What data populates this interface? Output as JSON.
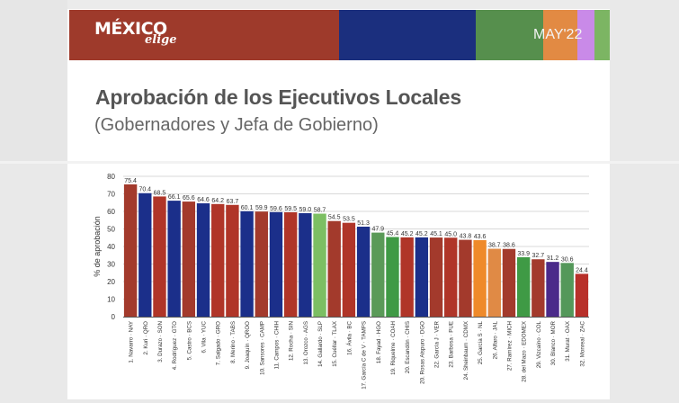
{
  "header": {
    "logo_main": "MÉXICO",
    "logo_sub": "elige",
    "date": "MAY'22",
    "stripe_colors": [
      "#9e3a2b",
      "#1b2f7e",
      "#568f4d",
      "#e28a43",
      "#c98ae8",
      "#7cb563"
    ]
  },
  "title": "Aprobación de los Ejecutivos Locales",
  "subtitle": "(Gobernadores y Jefa de Gobierno)",
  "chart_data": {
    "type": "bar",
    "ylabel": "% de aprobación",
    "xlabel": "",
    "ylim": [
      0,
      80
    ],
    "yticks": [
      0,
      10,
      20,
      30,
      40,
      50,
      60,
      70,
      80
    ],
    "grid": true,
    "categories": [
      "1. Navarro · NAY",
      "2. Kuri · QRO",
      "3. Durazo · SON",
      "4. Rodríguez · GTO",
      "5. Castro · BCS",
      "6. Vila · YUC",
      "7. Salgado · GRO",
      "8. Merino · TABS",
      "9. Joaquín · QROO",
      "10. Sansores · CAMP",
      "11. Campos · CHIH",
      "12. Rocha · SIN",
      "13. Orozco · AGS",
      "14. Gallardo · SLP",
      "15. Cuéllar · TLAX",
      "16. Ávila · BC",
      "17. García C de V · TAMPS",
      "18. Fayad · HGO",
      "19. Riquelme · COAH",
      "20. Escandón · CHIS",
      "20. Rosas Aispuro · DGO",
      "22. García J · VER",
      "23. Barbosa · PUE",
      "24. Sheinbaum · CDMX",
      "25. García S · NL",
      "26. Alfaro · JAL",
      "27. Ramírez · MICH",
      "28. del Mazo · EDOMEX",
      "29. Vizcaíno · COL",
      "30. Blanco · MOR",
      "31. Murat · OAX",
      "32. Monreal · ZAC"
    ],
    "values": [
      75.4,
      70.4,
      68.5,
      66.1,
      65.6,
      64.6,
      64.2,
      63.7,
      60.1,
      59.9,
      59.6,
      59.5,
      59.0,
      58.7,
      54.5,
      53.5,
      51.3,
      47.9,
      45.4,
      45.2,
      45.2,
      45.1,
      45.0,
      43.8,
      43.6,
      38.7,
      38.6,
      33.9,
      32.7,
      31.2,
      30.6,
      24.4
    ],
    "value_labels": [
      "75.4",
      "70.4",
      "68.5",
      "66.1",
      "65.6",
      "64.6",
      "64.2",
      "63.7",
      "60.1",
      "59.9",
      "59.6",
      "59.5",
      "59.0",
      "58.7",
      "54.5",
      "53.5",
      "51.3",
      "47.9",
      "45.4",
      "45.2",
      "45.2",
      "45.1",
      "45.0",
      "43.8",
      "43.6",
      "38.7",
      "38.6",
      "33.9",
      "32.7",
      "31.2",
      "30.6",
      "24.4"
    ],
    "colors": [
      "#a33a2c",
      "#1b2f8a",
      "#b03528",
      "#1b2f8a",
      "#a33a2c",
      "#1b2f8a",
      "#b03528",
      "#b03528",
      "#1b2f8a",
      "#a33a2c",
      "#1b2f8a",
      "#b03528",
      "#1b2f8a",
      "#7cbf63",
      "#a33a2c",
      "#b03528",
      "#1b2f8a",
      "#5a9a58",
      "#3f9a45",
      "#b03528",
      "#1b2f8a",
      "#a33a2c",
      "#b03528",
      "#a33a2c",
      "#ef8a2a",
      "#e08a45",
      "#a33a2c",
      "#3f9a45",
      "#a33a2c",
      "#4b2a8a",
      "#54985a",
      "#b8302a"
    ]
  }
}
